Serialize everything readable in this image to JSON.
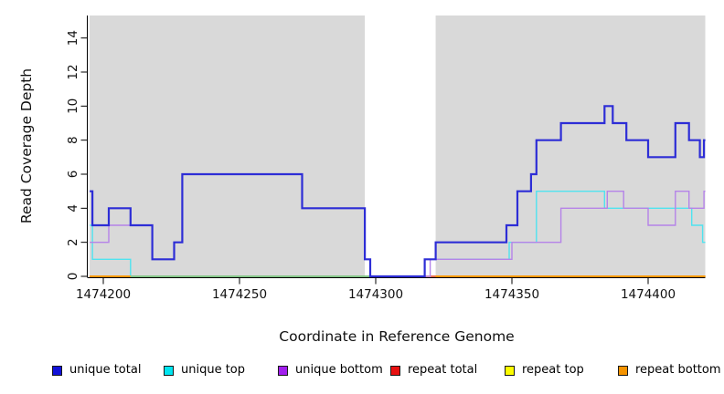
{
  "y_axis": {
    "label": "Read Coverage Depth",
    "ticks": [
      0,
      2,
      4,
      6,
      8,
      10,
      12,
      14
    ],
    "range": [
      0,
      15.3
    ]
  },
  "x_axis": {
    "label": "Coordinate in Reference Genome",
    "ticks": [
      1474200,
      1474250,
      1474300,
      1474350,
      1474400
    ],
    "range": [
      1474195,
      1474421
    ]
  },
  "chart_data": {
    "type": "line",
    "style": "step",
    "grid": false,
    "plot_background": "#d9d9d9",
    "no_data_band": {
      "from": 1474296,
      "to": 1474322
    },
    "series": [
      {
        "name": "unique total",
        "color": "#2d2dd6",
        "width": 2.2,
        "points": [
          [
            1474195,
            5
          ],
          [
            1474196,
            3
          ],
          [
            1474202,
            4
          ],
          [
            1474210,
            3
          ],
          [
            1474218,
            1
          ],
          [
            1474226,
            2
          ],
          [
            1474229,
            6
          ],
          [
            1474273,
            4
          ],
          [
            1474296,
            1
          ],
          [
            1474298,
            0
          ],
          [
            1474318,
            1
          ],
          [
            1474322,
            2
          ],
          [
            1474348,
            3
          ],
          [
            1474352,
            5
          ],
          [
            1474357,
            6
          ],
          [
            1474359,
            8
          ],
          [
            1474368,
            9
          ],
          [
            1474384,
            10
          ],
          [
            1474387,
            9
          ],
          [
            1474392,
            8
          ],
          [
            1474400,
            7
          ],
          [
            1474410,
            9
          ],
          [
            1474415,
            8
          ],
          [
            1474419,
            7
          ],
          [
            1474420.5,
            8
          ],
          [
            1474421,
            8
          ]
        ]
      },
      {
        "name": "unique top",
        "color": "#4fe3ef",
        "width": 1.4,
        "points": [
          [
            1474195,
            3
          ],
          [
            1474196,
            1
          ],
          [
            1474210,
            0
          ],
          [
            1474318,
            1
          ],
          [
            1474349,
            2
          ],
          [
            1474359,
            5
          ],
          [
            1474384,
            4
          ],
          [
            1474416,
            3
          ],
          [
            1474420,
            2
          ],
          [
            1474421,
            2
          ]
        ]
      },
      {
        "name": "unique bottom",
        "color": "#b583e8",
        "width": 1.4,
        "points": [
          [
            1474195,
            2
          ],
          [
            1474202,
            3
          ],
          [
            1474218,
            1
          ],
          [
            1474226,
            2
          ],
          [
            1474229,
            6
          ],
          [
            1474273,
            4
          ],
          [
            1474296,
            1
          ],
          [
            1474298,
            0
          ],
          [
            1474320,
            1
          ],
          [
            1474350,
            2
          ],
          [
            1474368,
            4
          ],
          [
            1474385,
            5
          ],
          [
            1474391,
            4
          ],
          [
            1474400,
            3
          ],
          [
            1474410,
            5
          ],
          [
            1474415,
            4
          ],
          [
            1474420.5,
            5
          ],
          [
            1474421,
            5
          ]
        ]
      },
      {
        "name": "repeat total",
        "color": "#e04040",
        "width": 1.4,
        "points": [
          [
            1474195,
            0
          ],
          [
            1474421,
            0
          ]
        ]
      },
      {
        "name": "repeat top",
        "color": "#f5f500",
        "width": 1.4,
        "points": [
          [
            1474195,
            0
          ],
          [
            1474421,
            0
          ]
        ]
      },
      {
        "name": "repeat bottom",
        "color": "#ff9708",
        "width": 2,
        "points": [
          [
            1474195,
            0
          ],
          [
            1474421,
            0
          ]
        ]
      }
    ],
    "zero_line_overlays": [
      {
        "color": "#7dc87f",
        "width": 1.6,
        "from": 1474210,
        "to": 1474298
      },
      {
        "color": "#ff9708",
        "width": 2.0,
        "from": 1474195,
        "to": 1474210
      },
      {
        "color": "#ff9708",
        "width": 2.0,
        "from": 1474322,
        "to": 1474421
      }
    ]
  },
  "legend": {
    "items": [
      {
        "label": "unique total",
        "swatch_color": "#1212d9"
      },
      {
        "label": "unique top",
        "swatch_color": "#00e5f0"
      },
      {
        "label": "unique bottom",
        "swatch_color": "#a21fee"
      },
      {
        "label": "repeat total",
        "swatch_color": "#e81111"
      },
      {
        "label": "repeat top",
        "swatch_color": "#fcfc00"
      },
      {
        "label": "repeat bottom",
        "swatch_color": "#f59300"
      }
    ]
  },
  "colors": {
    "plot_bg": "#d9d9d9",
    "page_bg": "#ffffff",
    "axis": "#000000",
    "tick_text": "#111111"
  }
}
